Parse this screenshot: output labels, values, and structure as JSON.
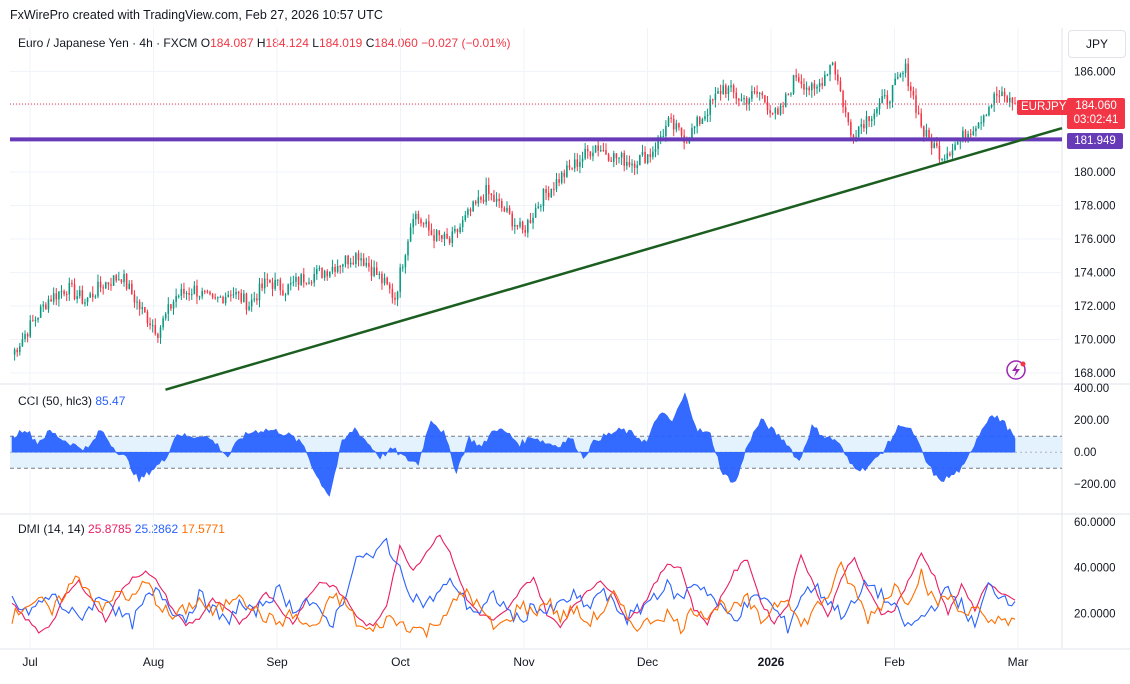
{
  "header": {
    "text": "FxWirePro created with TradingView.com, Feb 27, 2026 10:57 UTC"
  },
  "legend": {
    "instrument": "Euro / Japanese Yen · 4h · FXCM",
    "o_label": "O",
    "o_value": "184.087",
    "h_label": "H",
    "h_value": "184.124",
    "l_label": "L",
    "l_value": "184.019",
    "c_label": "C",
    "c_value": "184.060",
    "change": "−0.027 (−0.01%)"
  },
  "currency_button": "JPY",
  "tags": {
    "symbol": "EURJPY",
    "price": "184.060",
    "countdown": "03:02:41",
    "level": "181.949"
  },
  "cci": {
    "label": "CCI (50, hlc3)",
    "value": "85.47"
  },
  "dmi": {
    "label": "DMI (14, 14)",
    "adx": "25.8785",
    "plus_di": "25.2862",
    "minus_di": "17.5771"
  },
  "colors": {
    "candle_up": "#089981",
    "candle_down": "#f23645",
    "support": "#673ab7",
    "trendline": "#1b5e20",
    "cci_fill": "#2962ff",
    "cci_band": "#e3f2fd",
    "adx": "#e91e63",
    "plus_di": "#2962ff",
    "minus_di": "#ff6d00"
  },
  "chart_data": [
    {
      "type": "candlestick",
      "timeframe": "4h",
      "y_axis": {
        "ticks": [
          "186.000",
          "184.000",
          "182.000",
          "180.000",
          "178.000",
          "176.000",
          "174.000",
          "172.000",
          "170.000",
          "168.000"
        ],
        "range": [
          167.4,
          188.6
        ]
      },
      "x_axis": {
        "ticks": [
          "Jul",
          "Aug",
          "Sep",
          "Oct",
          "Nov",
          "Dec",
          "2026",
          "Feb",
          "Mar"
        ]
      },
      "close_path": [
        [
          "Jul",
          169.1
        ],
        [
          "Jul",
          170.8
        ],
        [
          "Jul",
          172.4
        ],
        [
          "Jul",
          173.1
        ],
        [
          "Jul",
          172.3
        ],
        [
          "Jul",
          173.3
        ],
        [
          "Jul",
          173.8
        ],
        [
          "Jul",
          171.9
        ],
        [
          "Aug",
          170.5
        ],
        [
          "Aug",
          172.6
        ],
        [
          "Aug",
          173.0
        ],
        [
          "Aug",
          172.2
        ],
        [
          "Aug",
          172.9
        ],
        [
          "Aug",
          172.1
        ],
        [
          "Sep",
          173.5
        ],
        [
          "Sep",
          173.0
        ],
        [
          "Sep",
          173.7
        ],
        [
          "Sep",
          174.0
        ],
        [
          "Sep",
          174.6
        ],
        [
          "Sep",
          175.1
        ],
        [
          "Oct",
          173.9
        ],
        [
          "Oct",
          172.5
        ],
        [
          "Oct",
          177.6
        ],
        [
          "Oct",
          176.3
        ],
        [
          "Oct",
          175.8
        ],
        [
          "Oct",
          177.4
        ],
        [
          "Oct",
          178.8
        ],
        [
          "Nov",
          177.7
        ],
        [
          "Nov",
          176.4
        ],
        [
          "Nov",
          178.4
        ],
        [
          "Nov",
          179.6
        ],
        [
          "Nov",
          180.6
        ],
        [
          "Nov",
          181.6
        ],
        [
          "Nov",
          180.9
        ],
        [
          "Dec",
          180.6
        ],
        [
          "Dec",
          181.1
        ],
        [
          "Dec",
          182.9
        ],
        [
          "Dec",
          182.0
        ],
        [
          "Dec",
          183.5
        ],
        [
          "Dec",
          185.1
        ],
        [
          "Dec",
          184.3
        ],
        [
          "2026",
          184.7
        ],
        [
          "2026",
          183.2
        ],
        [
          "2026",
          185.8
        ],
        [
          "2026",
          184.7
        ],
        [
          "2026",
          186.7
        ],
        [
          "2026",
          182.2
        ],
        [
          "2026",
          183.4
        ],
        [
          "Feb",
          184.4
        ],
        [
          "Feb",
          186.1
        ],
        [
          "Feb",
          182.3
        ],
        [
          "Feb",
          181.0
        ],
        [
          "Feb",
          181.9
        ],
        [
          "Feb",
          183.1
        ],
        [
          "Feb",
          184.6
        ],
        [
          "Feb",
          184.06
        ]
      ],
      "last_price": 184.06,
      "support_level": 181.949,
      "trendline": {
        "start": [
          "Aug",
          167.0
        ],
        "end": [
          "Mar",
          182.5
        ]
      }
    },
    {
      "type": "area",
      "name": "CCI (50, hlc3)",
      "y_axis": {
        "ticks": [
          "400.00",
          "200.00",
          "0.00",
          "−200.00"
        ],
        "range": [
          -380,
          420
        ]
      },
      "bands": [
        100,
        -100
      ],
      "values": [
        90,
        150,
        60,
        130,
        80,
        40,
        20,
        140,
        30,
        -40,
        -180,
        -110,
        -50,
        120,
        90,
        110,
        60,
        -30,
        90,
        130,
        140,
        130,
        100,
        40,
        -150,
        -270,
        60,
        150,
        60,
        -30,
        20,
        -40,
        -70,
        210,
        120,
        -120,
        90,
        30,
        150,
        120,
        50,
        100,
        60,
        40,
        90,
        -30,
        80,
        110,
        140,
        110,
        60,
        250,
        190,
        360,
        140,
        110,
        -140,
        -190,
        60,
        200,
        130,
        60,
        -60,
        160,
        100,
        70,
        -70,
        -110,
        -50,
        50,
        180,
        120,
        -60,
        -180,
        -150,
        -90,
        90,
        230,
        200,
        85.47
      ]
    },
    {
      "type": "line",
      "name": "DMI (14, 14)",
      "y_axis": {
        "ticks": [
          "60.0000",
          "40.0000",
          "20.0000"
        ],
        "range": [
          5,
          63
        ]
      },
      "series": [
        {
          "name": "ADX",
          "values": [
            24,
            18,
            12,
            16,
            28,
            34,
            26,
            17,
            28,
            36,
            38,
            33,
            22,
            15,
            18,
            26,
            22,
            16,
            22,
            30,
            22,
            16,
            26,
            34,
            32,
            26,
            17,
            14,
            24,
            49,
            39,
            47,
            55,
            43,
            26,
            20,
            17,
            21,
            30,
            36,
            20,
            14,
            24,
            29,
            35,
            28,
            18,
            22,
            32,
            42,
            40,
            22,
            16,
            27,
            38,
            44,
            25,
            16,
            24,
            46,
            32,
            18,
            36,
            44,
            30,
            20,
            22,
            34,
            46,
            36,
            20,
            32,
            22,
            34,
            28,
            25.8785
          ]
        },
        {
          "name": "+DI",
          "values": [
            26,
            20,
            24,
            28,
            22,
            18,
            24,
            28,
            20,
            16,
            26,
            30,
            22,
            18,
            28,
            22,
            16,
            24,
            20,
            26,
            30,
            22,
            26,
            20,
            16,
            30,
            46,
            44,
            52,
            38,
            28,
            24,
            30,
            34,
            24,
            20,
            28,
            22,
            16,
            24,
            20,
            24,
            28,
            22,
            30,
            24,
            18,
            22,
            28,
            32,
            26,
            34,
            30,
            22,
            18,
            24,
            28,
            22,
            14,
            28,
            32,
            26,
            20,
            24,
            34,
            28,
            22,
            14,
            18,
            24,
            30,
            24,
            14,
            32,
            28,
            25.2862
          ]
        },
        {
          "name": "−DI",
          "values": [
            18,
            24,
            26,
            20,
            30,
            36,
            28,
            22,
            30,
            26,
            34,
            24,
            18,
            22,
            26,
            20,
            24,
            30,
            22,
            18,
            16,
            20,
            14,
            16,
            28,
            24,
            14,
            12,
            18,
            16,
            14,
            12,
            18,
            24,
            30,
            22,
            14,
            16,
            24,
            20,
            26,
            18,
            22,
            16,
            20,
            28,
            18,
            14,
            18,
            20,
            14,
            22,
            20,
            24,
            22,
            26,
            16,
            24,
            28,
            14,
            22,
            28,
            40,
            30,
            18,
            24,
            32,
            26,
            38,
            24,
            28,
            20,
            24,
            14,
            18,
            17.5771
          ]
        }
      ]
    }
  ]
}
